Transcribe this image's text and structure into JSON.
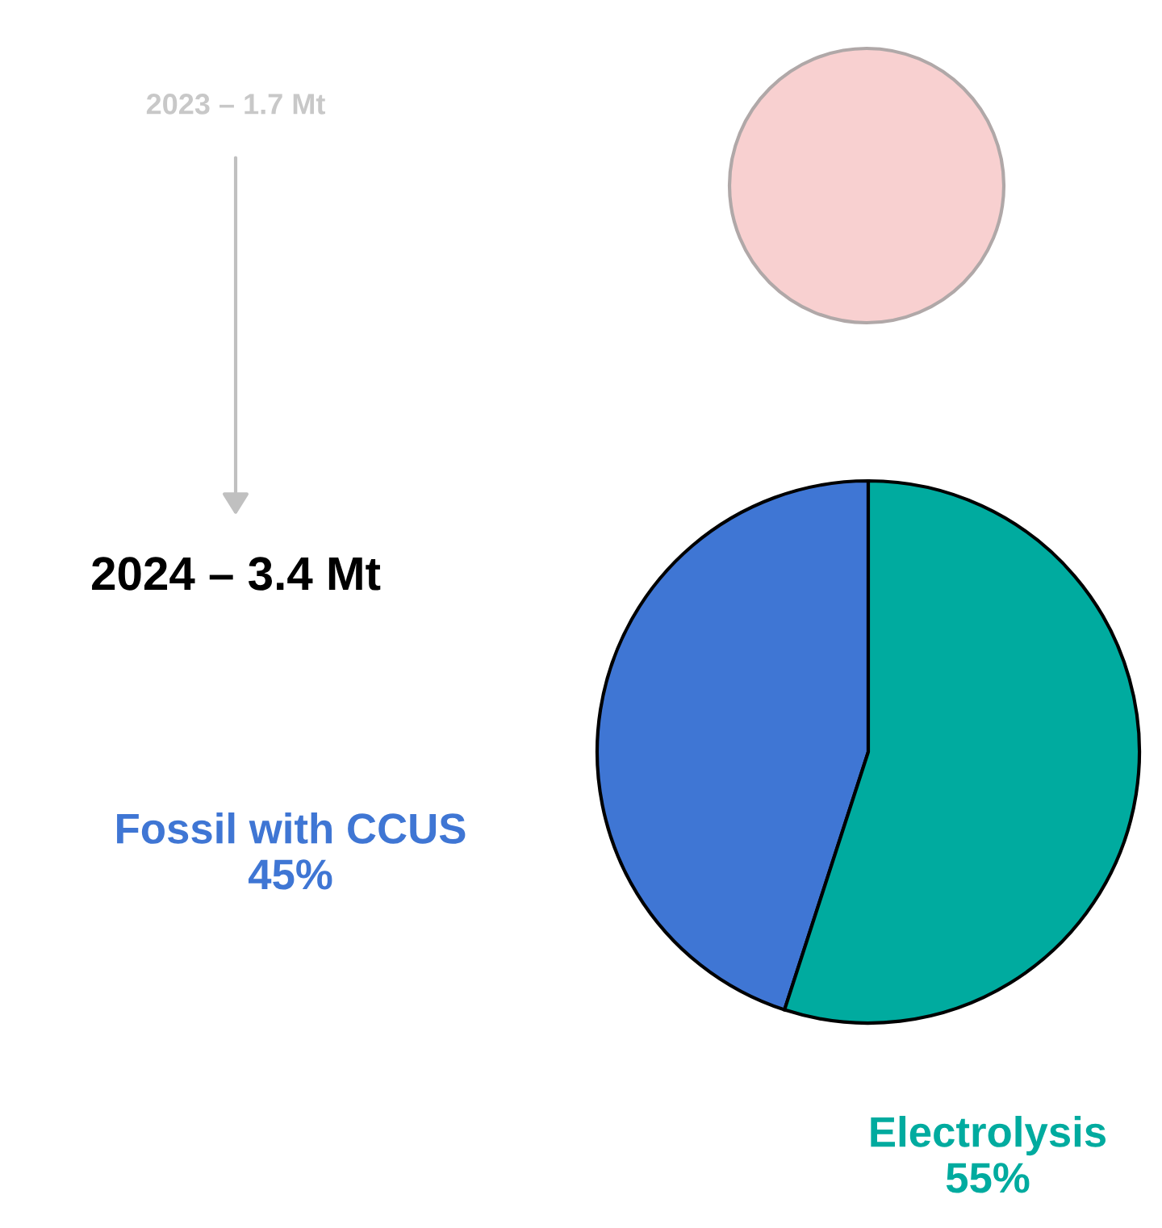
{
  "chart_data": [
    {
      "type": "pie",
      "title": "2023 – 1.7 Mt",
      "categories": [
        null
      ],
      "values": [
        100
      ],
      "colors": [
        "#f8d0d0"
      ]
    },
    {
      "type": "pie",
      "title": "2024 – 3.4 Mt",
      "categories": [
        "Fossil with CCUS",
        "Electrolysis"
      ],
      "values": [
        45,
        55
      ],
      "colors": [
        "#3f76d4",
        "#00ab9f"
      ],
      "value_labels": [
        "45%",
        "55%"
      ]
    }
  ]
}
